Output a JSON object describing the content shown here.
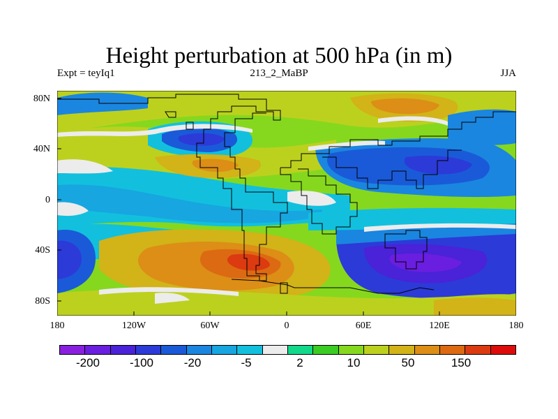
{
  "title": "Height perturbation at 500 hPa (in m)",
  "left_label": "Expt = teyIq1",
  "center_label": "213_2_MaBP",
  "right_label": "JJA",
  "map": {
    "type": "filled-contour",
    "projection": "cylindrical equidistant",
    "lon_range": [
      -180,
      180
    ],
    "lat_range": [
      -90,
      90
    ],
    "x_ticks": [
      "180",
      "120W",
      "60W",
      "0",
      "60E",
      "120E",
      "180"
    ],
    "y_ticks": [
      "80N",
      "40N",
      "0",
      "40S",
      "80S"
    ]
  },
  "colorbar": {
    "colors": [
      "#8a1fe0",
      "#6a1ee0",
      "#4a22d8",
      "#2c3ad8",
      "#1a5ad8",
      "#1a86e0",
      "#17a6e0",
      "#12c0de",
      "#ececec",
      "#12d88a",
      "#3acc22",
      "#86d81e",
      "#bcd11e",
      "#d2b318",
      "#dc8e16",
      "#dc6a12",
      "#dc3a10",
      "#dc0c0c"
    ],
    "labels": [
      "-200",
      "-100",
      "-20",
      "-5",
      "2",
      "10",
      "50",
      "150"
    ]
  }
}
